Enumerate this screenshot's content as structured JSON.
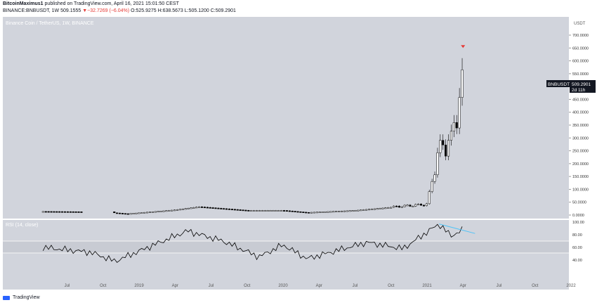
{
  "header": {
    "author": "BitcoinMaximus1",
    "published": "published on TradingView.com, April 16, 2021 15:01:50 CEST",
    "symbol_line": "BINANCE:BNBUSDT, 1W",
    "last": "509.1555",
    "change": "−32.7269 (−6.04%)",
    "ohlc": "O:525.9275 H:638.5673 L:505.1200 C:509.2901"
  },
  "chart_title": "Binance Coin / TetherUS, 1W, BINANCE",
  "currency": "USDT",
  "price_label": {
    "symbol": "BNBUSDT",
    "price": "509.2901",
    "countdown": "2d 11h"
  },
  "rsi_label": "RSI (14, close)",
  "footer": {
    "brand": "TradingView"
  },
  "colors": {
    "background": "#d1d4dc",
    "candle": "#000000",
    "signal": "#e53935",
    "trendline": "#4fc3f7",
    "rsi_band": "#c8cbd3"
  },
  "chart_data": [
    {
      "type": "candlestick",
      "title": "Binance Coin / TetherUS, 1W, BINANCE",
      "ylim": [
        0,
        750
      ],
      "y_ticks": [
        "700.0000",
        "650.0000",
        "600.0000",
        "550.0000",
        "500.0000",
        "450.0000",
        "400.0000",
        "350.0000",
        "300.0000",
        "250.0000",
        "200.0000",
        "150.0000",
        "100.0000",
        "50.0000",
        "0.0000"
      ],
      "x_ticks": [
        "Jul",
        "Oct",
        "2019",
        "Apr",
        "Jul",
        "Oct",
        "2020",
        "Apr",
        "Jul",
        "Oct",
        "2021",
        "Apr",
        "Jul",
        "Oct",
        "2022"
      ],
      "approx_close": [
        {
          "date": "2018-05",
          "value": 14
        },
        {
          "date": "2018-10",
          "value": 12
        },
        {
          "date": "2018-12",
          "value": 5
        },
        {
          "date": "2019-04",
          "value": 20
        },
        {
          "date": "2019-06",
          "value": 32
        },
        {
          "date": "2019-10",
          "value": 18
        },
        {
          "date": "2020-01",
          "value": 18
        },
        {
          "date": "2020-03",
          "value": 10
        },
        {
          "date": "2020-07",
          "value": 18
        },
        {
          "date": "2020-10",
          "value": 30
        },
        {
          "date": "2021-01",
          "value": 40
        },
        {
          "date": "2021-02",
          "value": 250
        },
        {
          "date": "2021-03",
          "value": 280
        },
        {
          "date": "2021-04",
          "value": 509
        }
      ],
      "signal": {
        "date": "2021-04",
        "value": 650
      }
    },
    {
      "type": "line",
      "title": "RSI (14, close)",
      "ylim": [
        0,
        100
      ],
      "y_ticks": [
        "100.00",
        "80.00",
        "60.00",
        "40.00"
      ],
      "approx_values": [
        {
          "date": "2018-05",
          "value": 60
        },
        {
          "date": "2018-09",
          "value": 52
        },
        {
          "date": "2018-11",
          "value": 38
        },
        {
          "date": "2019-05",
          "value": 86
        },
        {
          "date": "2019-08",
          "value": 70
        },
        {
          "date": "2019-11",
          "value": 45
        },
        {
          "date": "2020-01",
          "value": 64
        },
        {
          "date": "2020-03",
          "value": 42
        },
        {
          "date": "2020-08",
          "value": 68
        },
        {
          "date": "2020-11",
          "value": 58
        },
        {
          "date": "2021-02",
          "value": 97
        },
        {
          "date": "2021-03",
          "value": 78
        },
        {
          "date": "2021-04",
          "value": 88
        }
      ],
      "trendline": [
        {
          "date": "2021-02",
          "value": 97
        },
        {
          "date": "2021-05",
          "value": 82
        }
      ]
    }
  ]
}
